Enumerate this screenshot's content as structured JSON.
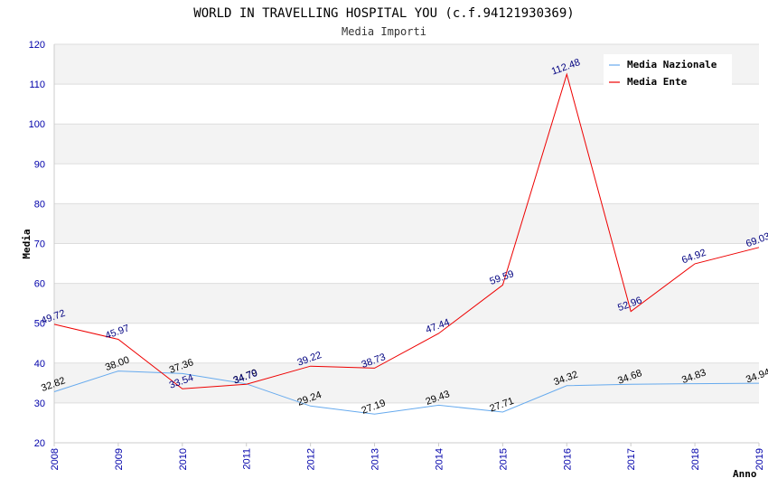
{
  "colors": {
    "nazionale": "#66aaee",
    "ente": "#ee0000",
    "label_nazionale": "#000000",
    "label_ente": "#000080",
    "band": "#f3f3f3",
    "grid": "#dddddd",
    "tick": "#0000aa"
  },
  "chart_data": {
    "type": "line",
    "title": "WORLD IN TRAVELLING HOSPITAL YOU (c.f.94121930369)",
    "subtitle": "Media Importi",
    "xlabel": "Anno",
    "ylabel": "Media",
    "ylim": [
      20,
      120
    ],
    "yticks": [
      "20",
      "30",
      "40",
      "50",
      "60",
      "70",
      "80",
      "90",
      "100",
      "110",
      "120"
    ],
    "categories": [
      "2008",
      "2009",
      "2010",
      "2011",
      "2012",
      "2013",
      "2014",
      "2015",
      "2016",
      "2017",
      "2018",
      "2019"
    ],
    "legend_position": "top-right",
    "grid": true,
    "series": [
      {
        "name": "Media Nazionale",
        "values": [
          32.82,
          38.0,
          37.36,
          34.79,
          29.24,
          27.19,
          29.43,
          27.71,
          34.32,
          34.68,
          34.83,
          34.94
        ],
        "labels": [
          "32.82",
          "38.00",
          "37.36",
          "34.79",
          "29.24",
          "27.19",
          "29.43",
          "27.71",
          "34.32",
          "34.68",
          "34.83",
          "34.94"
        ]
      },
      {
        "name": "Media Ente",
        "values": [
          49.72,
          45.97,
          33.54,
          34.7,
          39.22,
          38.73,
          47.44,
          59.59,
          112.48,
          52.96,
          64.92,
          69.03
        ],
        "labels": [
          "49.72",
          "45.97",
          "33.54",
          "34.70",
          "39.22",
          "38.73",
          "47.44",
          "59.59",
          "112.48",
          "52.96",
          "64.92",
          "69.03"
        ]
      }
    ]
  }
}
